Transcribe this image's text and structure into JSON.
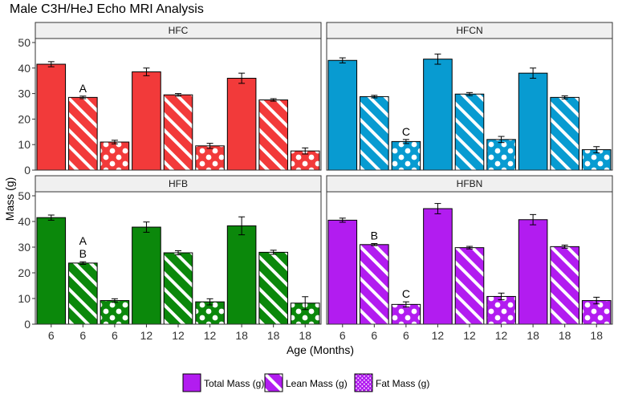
{
  "chart_data": {
    "type": "bar",
    "title": "Male C3H/HeJ Echo MRI Analysis",
    "xlabel": "Age (Months)",
    "ylabel": "Mass (g)",
    "ylim": [
      0,
      50
    ],
    "yticks": [
      0,
      10,
      20,
      30,
      40,
      50
    ],
    "categories": [
      "6",
      "6",
      "6",
      "12",
      "12",
      "12",
      "18",
      "18",
      "18"
    ],
    "measures": [
      "total",
      "lean",
      "fat",
      "total",
      "lean",
      "fat",
      "total",
      "lean",
      "fat"
    ],
    "legend": {
      "position": "bottom",
      "entries": [
        {
          "key": "total",
          "label": "Total Mass (g)"
        },
        {
          "key": "lean",
          "label": "Lean Mass (g)"
        },
        {
          "key": "fat",
          "label": "Fat Mass (g)"
        }
      ],
      "color": "#b21cf0"
    },
    "panels": [
      {
        "name": "HFC",
        "color": "#f23a3a",
        "values": [
          41.5,
          28.5,
          11,
          38.5,
          29.5,
          9.5,
          36,
          27.5,
          7.5
        ],
        "errors": [
          1,
          0.5,
          0.7,
          1.5,
          0.5,
          1,
          2,
          0.5,
          1.2
        ],
        "annotations": [
          {
            "bar": 1,
            "text": "A"
          }
        ]
      },
      {
        "name": "HFCN",
        "color": "#089bd1",
        "values": [
          43,
          28.8,
          11.2,
          43.5,
          29.8,
          12,
          38,
          28.5,
          8
        ],
        "errors": [
          1,
          0.5,
          0.8,
          2,
          0.6,
          1.2,
          2,
          0.6,
          1.2
        ],
        "annotations": [
          {
            "bar": 2,
            "text": "C"
          }
        ]
      },
      {
        "name": "HFB",
        "color": "#0b880b",
        "values": [
          41.5,
          23.8,
          9.2,
          37.8,
          27.8,
          8.7,
          38.3,
          28,
          8.2
        ],
        "errors": [
          1,
          0.5,
          0.7,
          2,
          0.8,
          1.2,
          3.5,
          0.8,
          2.5
        ],
        "annotations": [
          {
            "bar": 1,
            "text": "A"
          },
          {
            "bar": 1,
            "text": "B"
          }
        ]
      },
      {
        "name": "HFBN",
        "color": "#b21cf0",
        "values": [
          40.5,
          31,
          7.7,
          45,
          29.8,
          10.8,
          40.7,
          30.2,
          9.2
        ],
        "errors": [
          0.8,
          0.4,
          1,
          2,
          0.5,
          1.3,
          2,
          0.6,
          1.3
        ],
        "annotations": [
          {
            "bar": 1,
            "text": "B"
          },
          {
            "bar": 2,
            "text": "C"
          }
        ]
      }
    ]
  }
}
